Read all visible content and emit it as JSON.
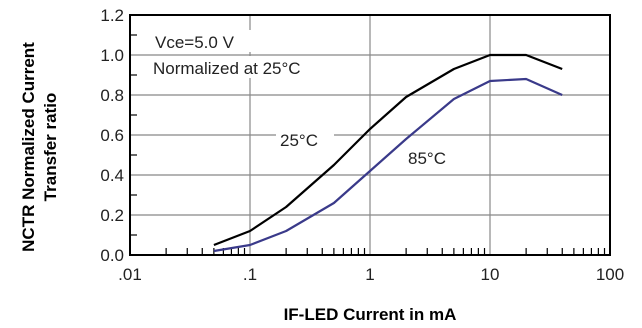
{
  "chart_data": {
    "type": "line",
    "xscale": "log",
    "xlim": [
      0.01,
      100
    ],
    "ylim": [
      0,
      1.2
    ],
    "xticks": [
      ".01",
      ".1",
      "1",
      "10",
      "100"
    ],
    "yticks": [
      "0.0",
      "0.2",
      "0.4",
      "0.6",
      "0.8",
      "1.0",
      "1.2"
    ],
    "xlabel": "IF-LED Current in mA",
    "ylabel_lines": [
      "NCTR Normalized Current",
      "Transfer ratio"
    ],
    "grid": true,
    "annotations": {
      "conditions": "Vce=5.0 V",
      "normalized": "Normalized at 25°C"
    },
    "series": [
      {
        "name": "25°C",
        "color": "#000000",
        "x": [
          0.05,
          0.1,
          0.2,
          0.5,
          1,
          2,
          5,
          10,
          20,
          40
        ],
        "y": [
          0.05,
          0.12,
          0.24,
          0.45,
          0.63,
          0.79,
          0.93,
          1.0,
          1.0,
          0.93
        ]
      },
      {
        "name": "85°C",
        "color": "#3a3a8a",
        "x": [
          0.05,
          0.1,
          0.2,
          0.5,
          1,
          2,
          5,
          10,
          20,
          40
        ],
        "y": [
          0.02,
          0.05,
          0.12,
          0.26,
          0.42,
          0.58,
          0.78,
          0.87,
          0.88,
          0.8
        ]
      }
    ]
  }
}
